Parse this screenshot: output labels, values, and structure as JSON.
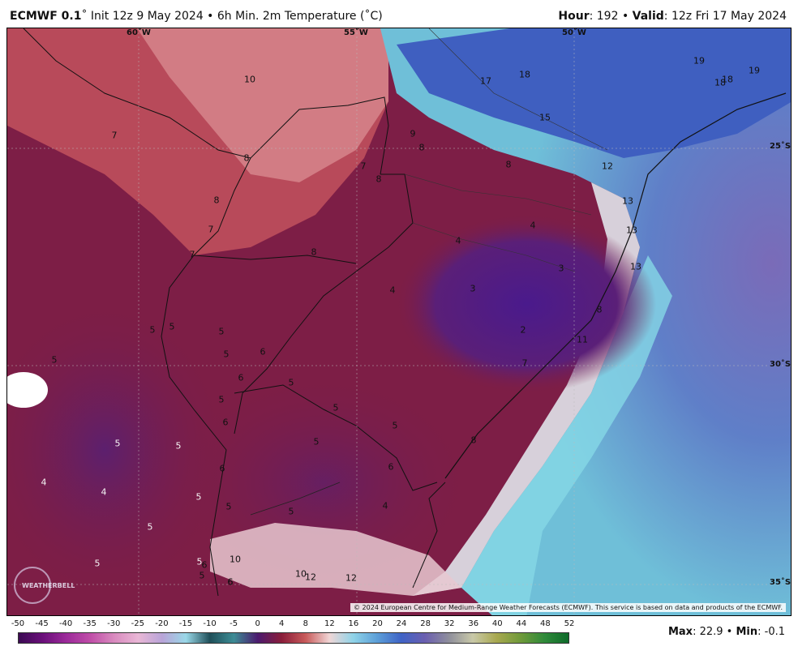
{
  "header": {
    "model": "ECMWF 0.1",
    "rest": "˚ Init 12z 9 May 2024 • 6h Min. 2m Temperature (˚C)",
    "hour_label": "Hour",
    "hour_value": ": 192 • ",
    "valid_label": "Valid",
    "valid_value": ": 12z Fri 17 May 2024"
  },
  "map": {
    "lon_labels": [
      "60˚W",
      "55˚W",
      "50˚W"
    ],
    "lat_labels": [
      "25˚S",
      "30˚S",
      "35˚S"
    ],
    "copyright": "© 2024 European Centre for Medium-Range Weather Forecasts (ECMWF). This service is based on data and products of the ECMWF.",
    "logo_text": "WEATHERBELL",
    "temperature_labels": [
      "10",
      "7",
      "8",
      "8",
      "7",
      "7",
      "8",
      "7",
      "8",
      "9",
      "8",
      "8",
      "12",
      "17",
      "18",
      "15",
      "19",
      "18",
      "18",
      "19",
      "13",
      "13",
      "13",
      "4",
      "4",
      "3",
      "3",
      "4",
      "2",
      "8",
      "11",
      "7",
      "5",
      "5",
      "5",
      "6",
      "6",
      "5",
      "5",
      "6",
      "5",
      "5",
      "5",
      "5",
      "6",
      "8",
      "5",
      "6",
      "5",
      "5",
      "5",
      "4",
      "4",
      "5",
      "6",
      "5",
      "5",
      "5",
      "5",
      "6",
      "4",
      "10",
      "10",
      "12",
      "12",
      "6",
      "5"
    ]
  },
  "legend": {
    "ticks": [
      "-50",
      "-45",
      "-40",
      "-35",
      "-30",
      "-25",
      "-20",
      "-15",
      "-10",
      "-5",
      "0",
      "4",
      "8",
      "12",
      "16",
      "20",
      "24",
      "28",
      "32",
      "36",
      "40",
      "44",
      "48",
      "52"
    ],
    "colors": [
      "#3b0a52",
      "#6a0f7a",
      "#9c2a9a",
      "#c04ea8",
      "#d98bbf",
      "#e9b7d6",
      "#b9a4d8",
      "#9ad8e8",
      "#1f4f59",
      "#3d8c95",
      "#4b1a6e",
      "#8a1d3a",
      "#c85a5a",
      "#f0d6d6",
      "#8fd3e8",
      "#5c9fd8",
      "#3f63c6",
      "#6b5fb0",
      "#8f8f9c",
      "#c9c9a8",
      "#a8a84f",
      "#6f9a3a",
      "#2f8a3a",
      "#0e6a2a"
    ],
    "max_label": "Max",
    "max_value": ": 22.9 • ",
    "min_label": "Min",
    "min_value": ": -0.1"
  }
}
